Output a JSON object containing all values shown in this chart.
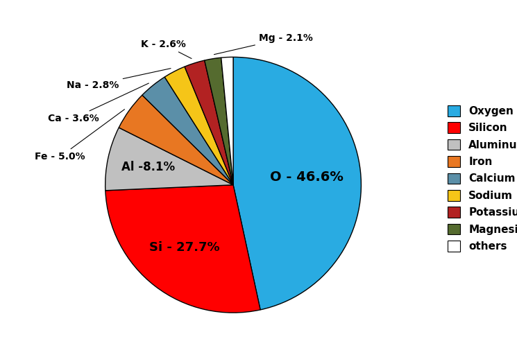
{
  "labels": [
    "Oxygen",
    "Silicon",
    "Aluminum",
    "Iron",
    "Calcium",
    "Sodium",
    "Potassium",
    "Magnesium",
    "others"
  ],
  "values": [
    46.6,
    27.7,
    8.1,
    5.0,
    3.6,
    2.8,
    2.6,
    2.1,
    1.5
  ],
  "colors": [
    "#29ABE2",
    "#FF0000",
    "#C0C0C0",
    "#E87722",
    "#5B8FA8",
    "#F5C518",
    "#B22222",
    "#556B2F",
    "#FFFFFF"
  ],
  "legend_labels": [
    "Oxygen",
    "Silicon",
    "Aluminum",
    "Iron",
    "Calcium",
    "Sodium",
    "Potassium",
    "Magnesium",
    "others"
  ],
  "figsize": [
    7.45,
    5.15
  ],
  "dpi": 100
}
